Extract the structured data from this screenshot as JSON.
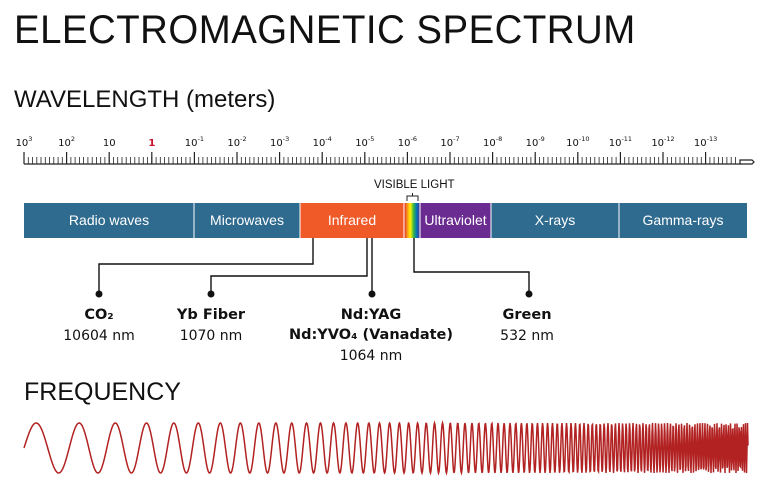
{
  "title": "ELECTROMAGNETIC SPECTRUM",
  "wavelength_label": "WAVELENGTH (meters)",
  "scale": {
    "ticks": [
      {
        "base": "10",
        "exp": "3",
        "highlight": false
      },
      {
        "base": "10",
        "exp": "2",
        "highlight": false
      },
      {
        "base": "10",
        "exp": "",
        "highlight": false
      },
      {
        "base": "1",
        "exp": "",
        "highlight": true
      },
      {
        "base": "10",
        "exp": "-1",
        "highlight": false
      },
      {
        "base": "10",
        "exp": "-2",
        "highlight": false
      },
      {
        "base": "10",
        "exp": "-3",
        "highlight": false
      },
      {
        "base": "10",
        "exp": "-4",
        "highlight": false
      },
      {
        "base": "10",
        "exp": "-5",
        "highlight": false
      },
      {
        "base": "10",
        "exp": "-6",
        "highlight": false
      },
      {
        "base": "10",
        "exp": "-7",
        "highlight": false
      },
      {
        "base": "10",
        "exp": "-8",
        "highlight": false
      },
      {
        "base": "10",
        "exp": "-9",
        "highlight": false
      },
      {
        "base": "10",
        "exp": "-10",
        "highlight": false
      },
      {
        "base": "10",
        "exp": "-11",
        "highlight": false
      },
      {
        "base": "10",
        "exp": "-12",
        "highlight": false
      },
      {
        "base": "10",
        "exp": "-13",
        "highlight": false
      }
    ],
    "highlight_color": "#c8102e"
  },
  "visible_light_label": "VISIBLE LIGHT",
  "bands": [
    {
      "label": "Radio waves",
      "color": "#2f6a8f"
    },
    {
      "label": "Microwaves",
      "color": "#2f6a8f"
    },
    {
      "label": "Infrared",
      "color": "#f05a28"
    },
    {
      "label": "",
      "color": "rainbow"
    },
    {
      "label": "Ultraviolet",
      "color": "#6a2c91"
    },
    {
      "label": "X-rays",
      "color": "#2f6a8f"
    },
    {
      "label": "Gamma-rays",
      "color": "#2f6a8f"
    }
  ],
  "lasers": [
    {
      "name": "CO₂",
      "nm": "10604 nm"
    },
    {
      "name": "Yb Fiber",
      "nm": "1070 nm"
    },
    {
      "name": "Nd:YAG",
      "name2": "Nd:YVO₄ (Vanadate)",
      "nm": "1064 nm"
    },
    {
      "name": "Green",
      "nm": "532 nm"
    }
  ],
  "frequency_label": "FREQUENCY",
  "wave_color": "#b22222"
}
